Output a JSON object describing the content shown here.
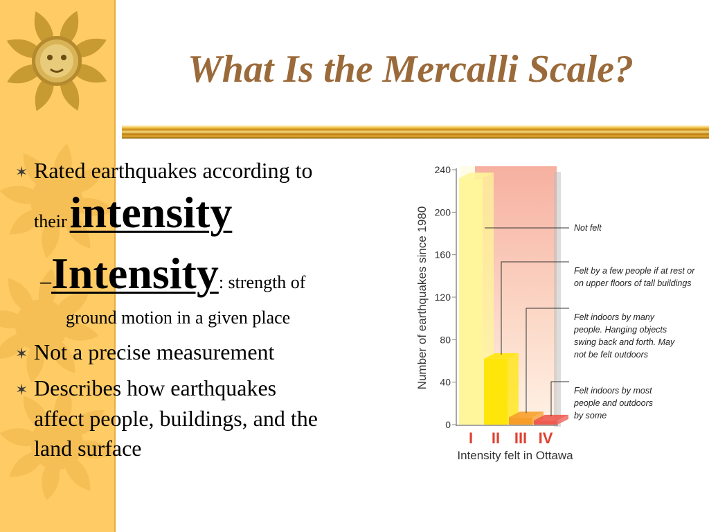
{
  "slide": {
    "title": "What Is the Mercalli Scale?",
    "colors": {
      "sidebar": "#fecb64",
      "title": "#9b6a3a",
      "rule": "#c98a12"
    },
    "bullet_icon": "star-bullet-icon",
    "bullets": [
      {
        "line1": "Rated earthquakes according to",
        "line2_pre": "their",
        "line2_emph": "intensity"
      },
      {
        "dash": "–",
        "term": "Intensity",
        "rest": ": strength of",
        "line2": "ground motion in a given place"
      },
      {
        "text": "Not a precise measurement"
      },
      {
        "line1": "Describes how earthquakes",
        "line2": "affect people, buildings, and the",
        "line3": "land surface"
      }
    ]
  },
  "chart_data": {
    "type": "bar",
    "categories": [
      "I",
      "II",
      "III",
      "IV"
    ],
    "values": [
      232,
      62,
      7,
      4
    ],
    "ylabel": "Number of earthquakes since 1980",
    "xlabel": "Intensity felt in Ottawa",
    "ylim": [
      0,
      240
    ],
    "yticks": [
      0,
      40,
      80,
      120,
      160,
      200,
      240
    ],
    "bar_colors": [
      "#fff59a",
      "#ffe60a",
      "#f79e2a",
      "#ee5a50"
    ],
    "annotations": [
      {
        "target": "I",
        "lines": [
          "Not felt"
        ]
      },
      {
        "target": "II",
        "lines": [
          "Felt by a few people if at rest or",
          "on upper floors of tall buildings"
        ]
      },
      {
        "target": "III",
        "lines": [
          "Felt indoors by many",
          "people. Hanging objects",
          "swing back and forth.  May",
          "not be felt outdoors"
        ]
      },
      {
        "target": "IV",
        "lines": [
          "Felt indoors by most",
          "people and outdoors",
          "by some"
        ]
      }
    ]
  }
}
